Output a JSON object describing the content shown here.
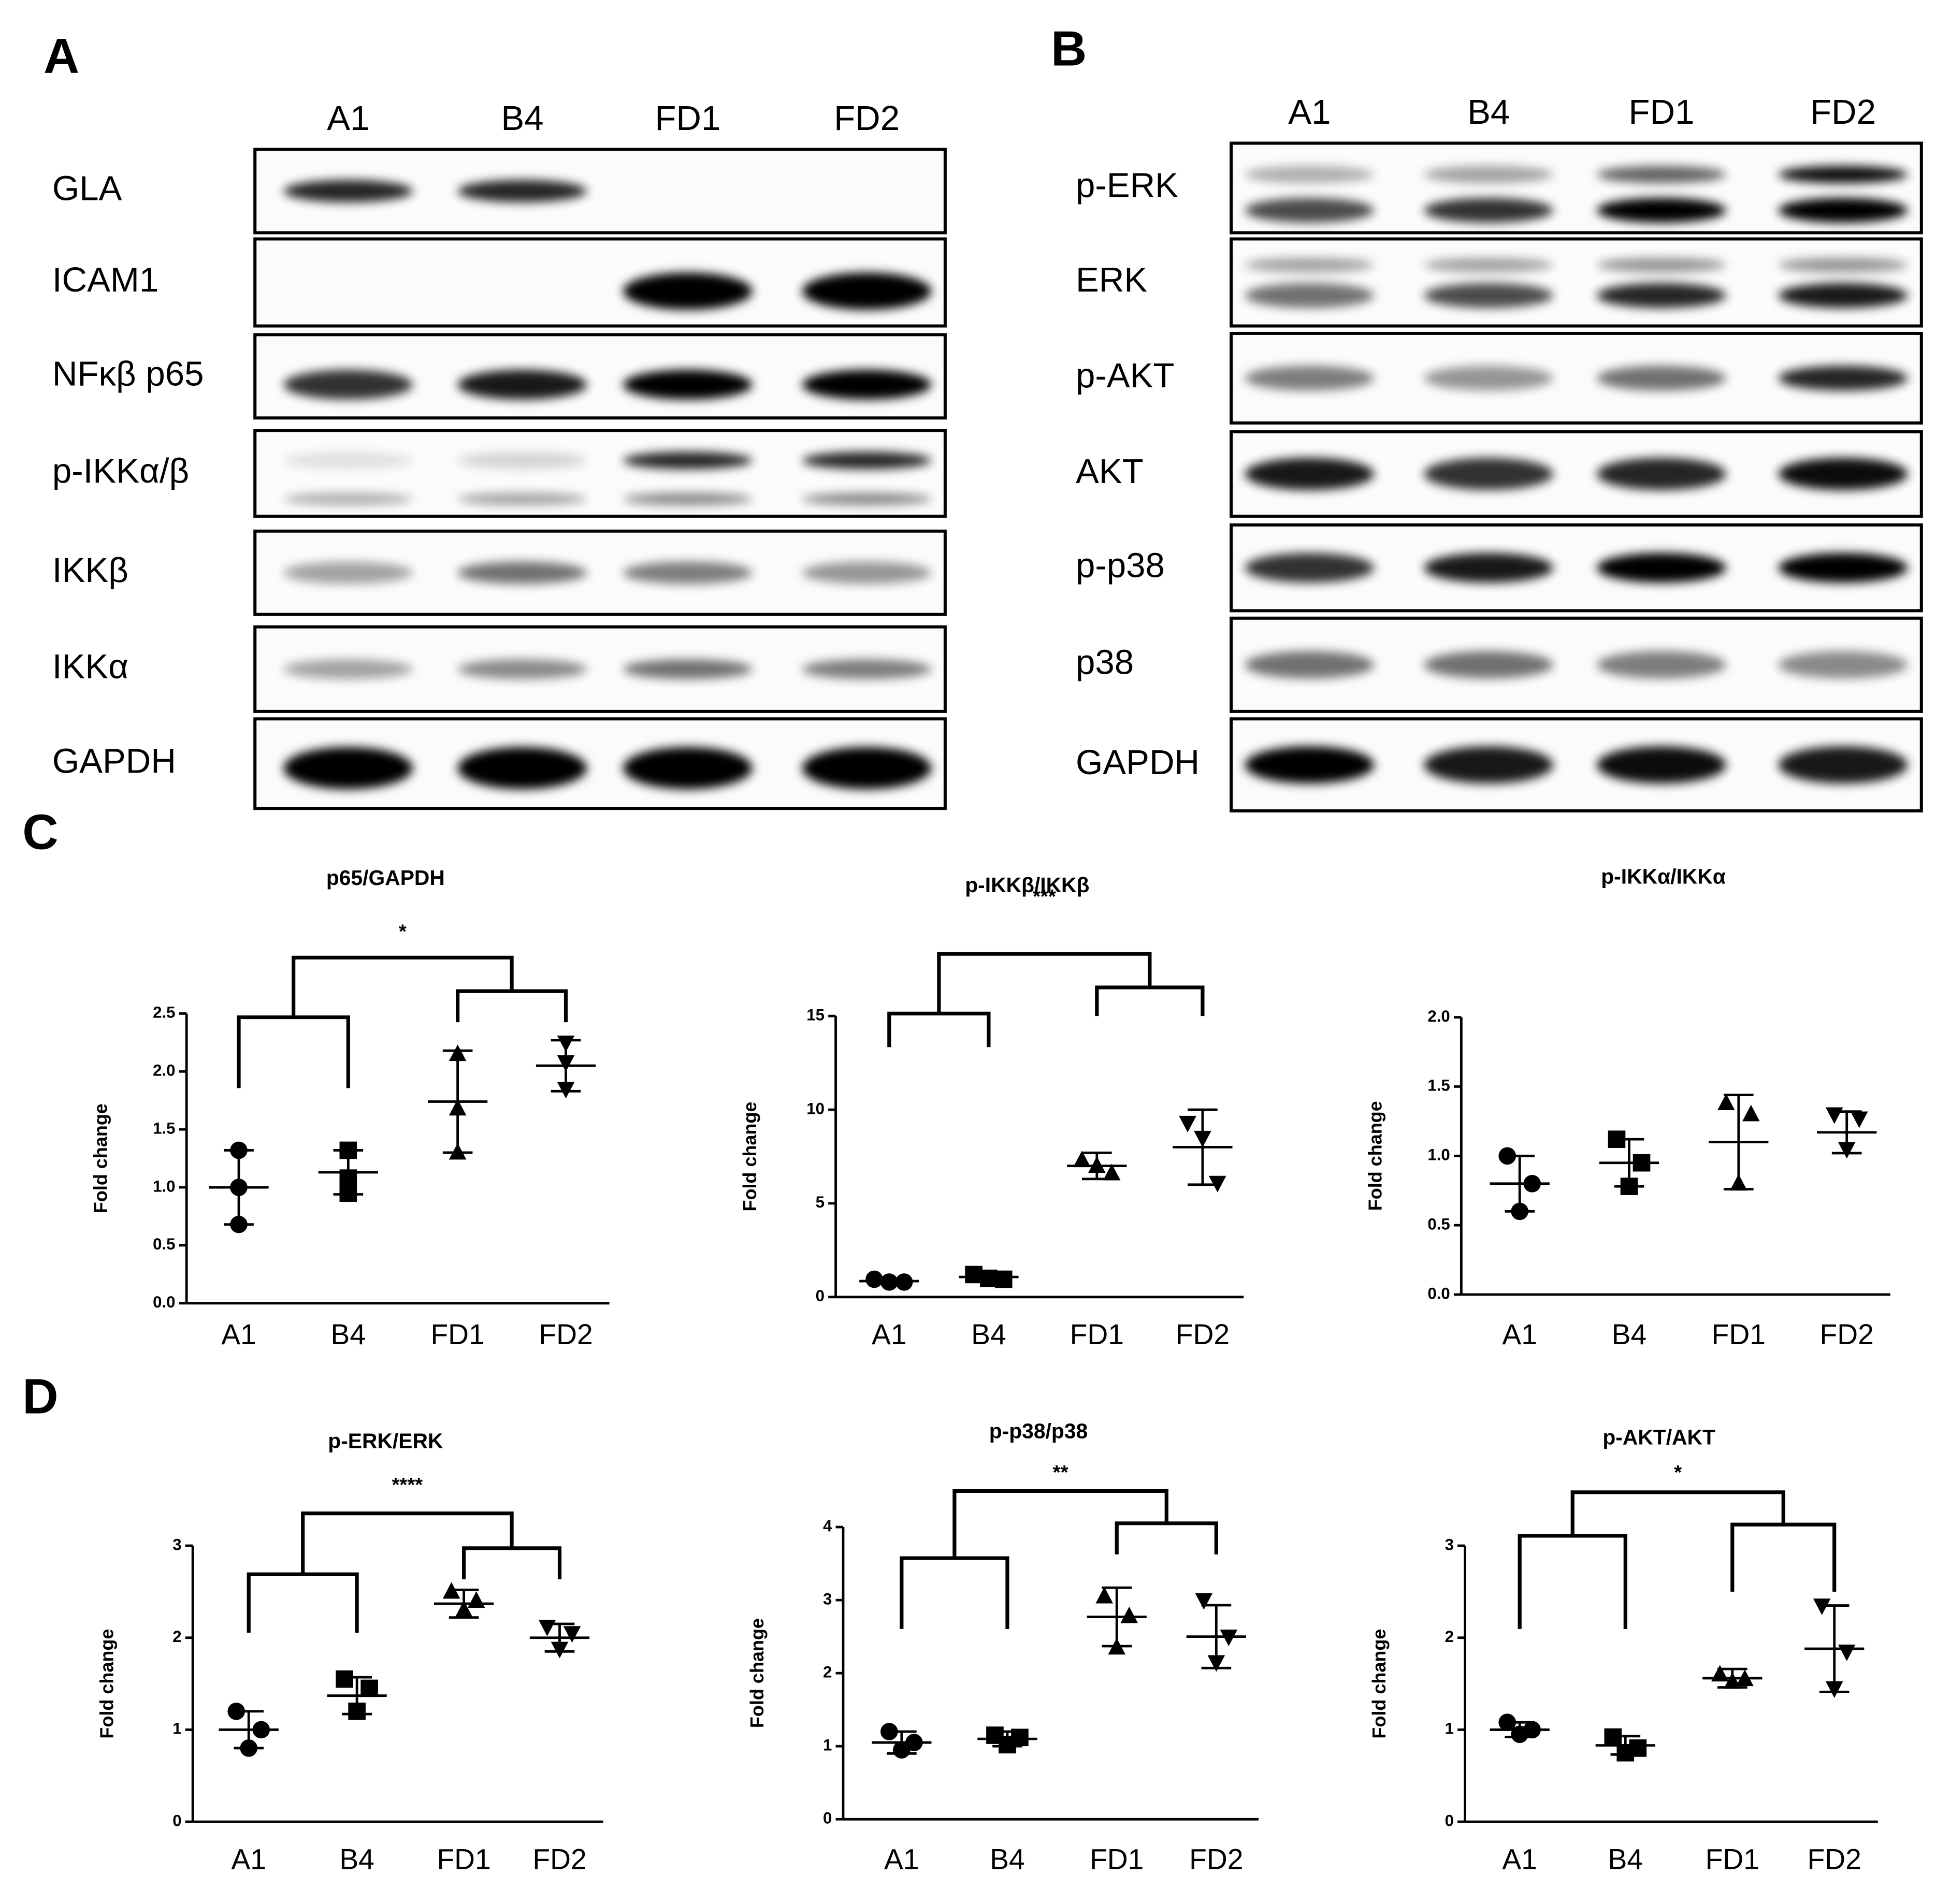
{
  "blot_a": {
    "label": "A",
    "lanes": [
      "A1",
      "B4",
      "FD1",
      "FD2"
    ],
    "rows": [
      "GLA",
      "ICAM1",
      "NFκβ p65",
      "p-IKKα/β",
      "IKKβ",
      "IKKα",
      "GAPDH"
    ]
  },
  "blot_b": {
    "label": "B",
    "lanes": [
      "A1",
      "B4",
      "FD1",
      "FD2"
    ],
    "rows": [
      "p-ERK",
      "ERK",
      "p-AKT",
      "AKT",
      "p-p38",
      "p38",
      "GAPDH"
    ]
  },
  "panel_c_label": "C",
  "panel_d_label": "D",
  "chart_data": [
    {
      "type": "dotplot",
      "title": "p65/GAPDH",
      "y_label": "Fold change",
      "categories": [
        "A1",
        "B4",
        "FD1",
        "FD2"
      ],
      "markers": [
        "circle",
        "square",
        "triangle-up",
        "triangle-down"
      ],
      "color": "#000000",
      "points": [
        [
          1.32,
          1.0,
          0.68
        ],
        [
          1.32,
          1.08,
          0.95
        ],
        [
          2.15,
          1.68,
          1.3
        ],
        [
          2.25,
          2.08,
          1.85
        ]
      ],
      "mean": [
        1.0,
        1.13,
        1.74,
        2.05
      ],
      "sd": [
        0.32,
        0.19,
        0.44,
        0.22
      ],
      "ylim": [
        0,
        2.5
      ],
      "yticks": [
        {
          "value": 0,
          "label": "0.0"
        },
        0.5,
        {
          "value": 1,
          "label": "1.0"
        },
        1.5,
        {
          "value": 2,
          "label": "2.0"
        },
        2.5
      ],
      "significance": "*"
    },
    {
      "type": "dotplot",
      "title": "p-IKKβ/IKKβ",
      "y_label": "Fold change",
      "categories": [
        "A1",
        "B4",
        "FD1",
        "FD2"
      ],
      "markers": [
        "circle",
        "square",
        "triangle-up",
        "triangle-down"
      ],
      "color": "#000000",
      "points": [
        [
          0.95,
          0.8,
          0.8
        ],
        [
          1.2,
          1.0,
          0.95
        ],
        [
          7.3,
          7.0,
          6.6
        ],
        [
          9.3,
          8.5,
          6.1
        ]
      ],
      "mean": [
        0.85,
        1.07,
        7.0,
        8.0
      ],
      "sd": [
        0.1,
        0.15,
        0.7,
        2.0
      ],
      "ylim": [
        0,
        15
      ],
      "yticks": [
        0,
        5,
        10,
        15
      ],
      "significance": "***"
    },
    {
      "type": "dotplot",
      "title": "p-IKKα/IKKα",
      "y_label": "Fold change",
      "categories": [
        "A1",
        "B4",
        "FD1",
        "FD2"
      ],
      "markers": [
        "circle",
        "square",
        "triangle-up",
        "triangle-down"
      ],
      "color": "#000000",
      "points": [
        [
          1.0,
          0.8,
          0.6
        ],
        [
          1.12,
          0.95,
          0.78
        ],
        [
          1.38,
          1.3,
          0.8
        ],
        [
          1.3,
          1.27,
          1.05
        ]
      ],
      "mean": [
        0.8,
        0.95,
        1.1,
        1.17
      ],
      "sd": [
        0.2,
        0.17,
        0.34,
        0.15
      ],
      "ylim": [
        0,
        2
      ],
      "yticks": [
        {
          "value": 0,
          "label": "0.0"
        },
        0.5,
        {
          "value": 1,
          "label": "1.0"
        },
        1.5,
        {
          "value": 2,
          "label": "2.0"
        }
      ]
    },
    {
      "type": "dotplot",
      "title": "p-ERK/ERK",
      "y_label": "Fold change",
      "categories": [
        "A1",
        "B4",
        "FD1",
        "FD2"
      ],
      "markers": [
        "circle",
        "square",
        "triangle-up",
        "triangle-down"
      ],
      "color": "#000000",
      "points": [
        [
          1.2,
          1.0,
          0.8
        ],
        [
          1.55,
          1.45,
          1.2
        ],
        [
          2.5,
          2.4,
          2.3
        ],
        [
          2.12,
          2.05,
          1.88
        ]
      ],
      "mean": [
        1.0,
        1.37,
        2.37,
        2.0
      ],
      "sd": [
        0.2,
        0.2,
        0.15,
        0.15
      ],
      "ylim": [
        0,
        3
      ],
      "yticks": [
        0,
        1,
        2,
        3
      ],
      "significance": "****"
    },
    {
      "type": "dotplot",
      "title": "p-p38/p38",
      "y_label": "Fold change",
      "categories": [
        "A1",
        "B4",
        "FD1",
        "FD2"
      ],
      "markers": [
        "circle",
        "square",
        "triangle-up",
        "triangle-down"
      ],
      "color": "#000000",
      "points": [
        [
          1.2,
          1.05,
          0.95
        ],
        [
          1.15,
          1.12,
          1.02
        ],
        [
          3.05,
          2.78,
          2.35
        ],
        [
          3.0,
          2.5,
          2.15
        ]
      ],
      "mean": [
        1.05,
        1.1,
        2.77,
        2.5
      ],
      "sd": [
        0.15,
        0.1,
        0.4,
        0.43
      ],
      "ylim": [
        0,
        4
      ],
      "yticks": [
        0,
        1,
        2,
        3,
        4
      ],
      "significance": "**"
    },
    {
      "type": "dotplot",
      "title": "p-AKT/AKT",
      "y_label": "Fold change",
      "categories": [
        "A1",
        "B4",
        "FD1",
        "FD2"
      ],
      "markers": [
        "circle",
        "square",
        "triangle-up",
        "triangle-down"
      ],
      "color": "#000000",
      "points": [
        [
          1.08,
          1.0,
          0.95
        ],
        [
          0.92,
          0.8,
          0.75
        ],
        [
          1.6,
          1.55,
          1.52
        ],
        [
          2.35,
          1.85,
          1.45
        ]
      ],
      "mean": [
        1.0,
        0.83,
        1.56,
        1.88
      ],
      "sd": [
        0.08,
        0.1,
        0.1,
        0.47
      ],
      "ylim": [
        0,
        3
      ],
      "yticks": [
        0,
        1,
        2,
        3
      ],
      "significance": "*"
    }
  ]
}
